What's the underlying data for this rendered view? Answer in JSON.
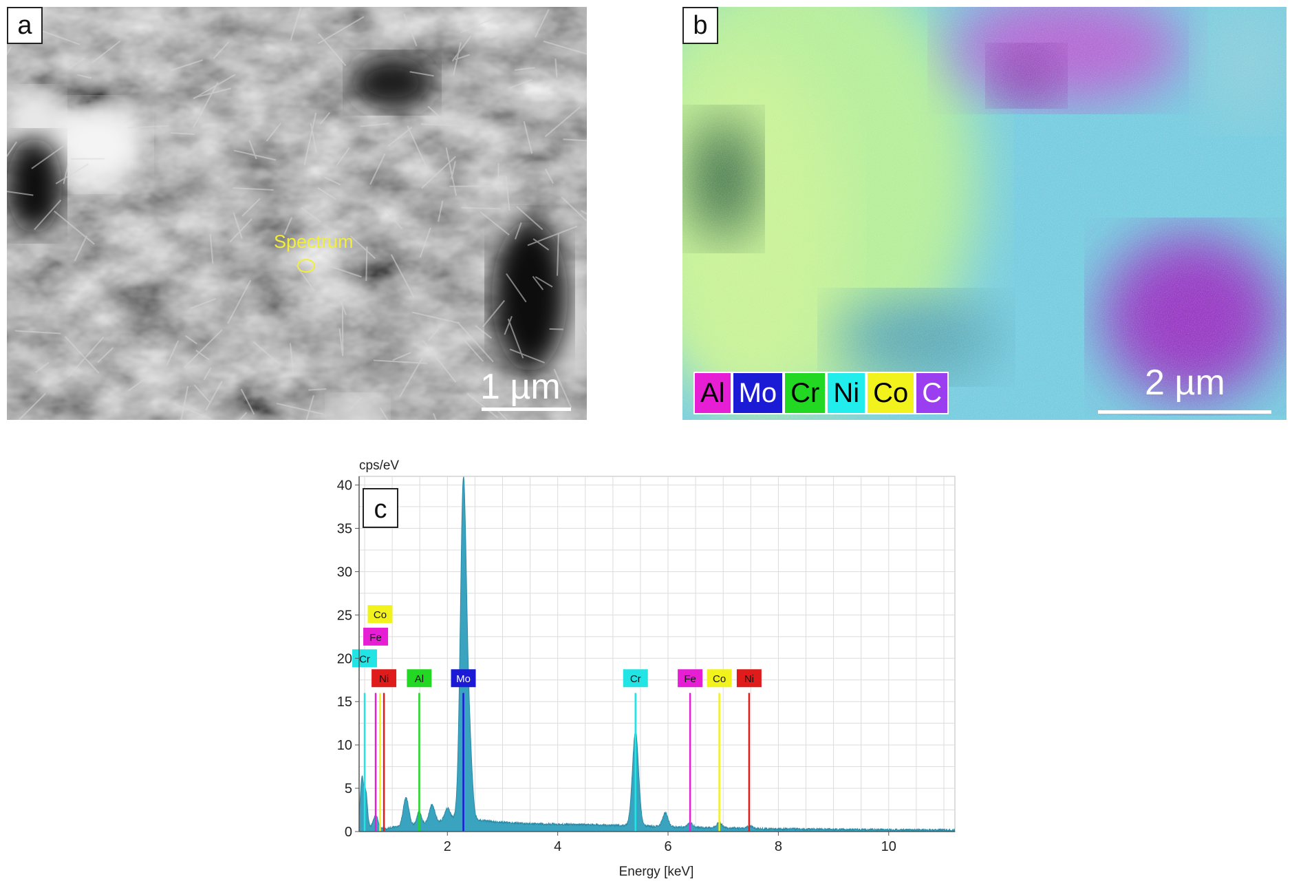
{
  "panels": {
    "a": {
      "letter": "a",
      "scale_label": "1 µm",
      "marker_label": "Spectrum"
    },
    "b": {
      "letter": "b",
      "scale_label": "2 µm",
      "legend": [
        {
          "label": "Al",
          "bg": "#e61fd4",
          "fg": "#000000"
        },
        {
          "label": "Mo",
          "bg": "#1b1bd6",
          "fg": "#ffffff"
        },
        {
          "label": "Cr",
          "bg": "#22d822",
          "fg": "#000000"
        },
        {
          "label": "Ni",
          "bg": "#22eded",
          "fg": "#000000"
        },
        {
          "label": "Co",
          "bg": "#f2f21c",
          "fg": "#000000"
        },
        {
          "label": "C",
          "bg": "#9b3ef0",
          "fg": "#ffffff"
        }
      ]
    },
    "c": {
      "letter": "c"
    }
  },
  "chart_data": {
    "type": "area",
    "ylabel": "cps/eV",
    "xlabel": "Energy [keV]",
    "xlim": [
      0.4,
      11.2
    ],
    "ylim": [
      0,
      41
    ],
    "xticks": [
      2,
      4,
      6,
      8,
      10
    ],
    "yticks": [
      0,
      5,
      10,
      15,
      20,
      25,
      30,
      35,
      40
    ],
    "grid": true,
    "fill_color": "#3aa3bf",
    "spectrum": {
      "baseline": [
        [
          0.4,
          0.6
        ],
        [
          0.6,
          0.5
        ],
        [
          0.9,
          0.3
        ],
        [
          1.0,
          0.5
        ],
        [
          1.6,
          0.9
        ],
        [
          2.1,
          1.4
        ],
        [
          2.6,
          1.3
        ],
        [
          2.9,
          1.1
        ],
        [
          3.5,
          0.9
        ],
        [
          4.5,
          0.8
        ],
        [
          5.2,
          0.7
        ],
        [
          6.2,
          0.5
        ],
        [
          7.0,
          0.4
        ],
        [
          8.0,
          0.3
        ],
        [
          9.0,
          0.25
        ],
        [
          10.0,
          0.2
        ],
        [
          11.2,
          0.15
        ]
      ],
      "peaks": [
        {
          "center": 0.45,
          "height": 5.5,
          "width": 0.03
        },
        {
          "center": 0.52,
          "height": 4.0,
          "width": 0.03
        },
        {
          "center": 0.7,
          "height": 1.5,
          "width": 0.04
        },
        {
          "center": 1.25,
          "height": 3.2,
          "width": 0.05
        },
        {
          "center": 1.49,
          "height": 1.5,
          "width": 0.04
        },
        {
          "center": 1.72,
          "height": 2.1,
          "width": 0.05
        },
        {
          "center": 2.0,
          "height": 1.4,
          "width": 0.05
        },
        {
          "center": 2.29,
          "height": 38.8,
          "width": 0.055
        },
        {
          "center": 2.4,
          "height": 8.0,
          "width": 0.05
        },
        {
          "center": 5.41,
          "height": 10.9,
          "width": 0.055
        },
        {
          "center": 5.95,
          "height": 1.6,
          "width": 0.05
        },
        {
          "center": 6.4,
          "height": 0.5,
          "width": 0.05
        },
        {
          "center": 6.93,
          "height": 0.6,
          "width": 0.05
        },
        {
          "center": 7.48,
          "height": 0.3,
          "width": 0.05
        }
      ]
    },
    "element_markers": [
      {
        "label": "Cr",
        "x": 0.5,
        "line_top": 16,
        "label_y": 20,
        "color": "#22e4e4"
      },
      {
        "label": "Fe",
        "x": 0.7,
        "line_top": 16,
        "label_y": 22.5,
        "color": "#e61fd4"
      },
      {
        "label": "Co",
        "x": 0.78,
        "line_top": 16,
        "label_y": 25.1,
        "color": "#f2f21c"
      },
      {
        "label": "Ni",
        "x": 0.85,
        "line_top": 16,
        "label_y": 17.7,
        "color": "#e01b1b"
      },
      {
        "label": "Al",
        "x": 1.49,
        "line_top": 16,
        "label_y": 17.7,
        "color": "#22d822"
      },
      {
        "label": "Mo",
        "x": 2.29,
        "line_top": 16,
        "label_y": 17.7,
        "color": "#1b1bd6"
      },
      {
        "label": "Cr",
        "x": 5.41,
        "line_top": 16,
        "label_y": 17.7,
        "color": "#22e4e4"
      },
      {
        "label": "Fe",
        "x": 6.4,
        "line_top": 16,
        "label_y": 17.7,
        "color": "#e61fd4"
      },
      {
        "label": "Co",
        "x": 6.93,
        "line_top": 16,
        "label_y": 17.7,
        "color": "#f2f21c"
      },
      {
        "label": "Ni",
        "x": 7.47,
        "line_top": 16,
        "label_y": 17.7,
        "color": "#e01b1b"
      }
    ]
  }
}
